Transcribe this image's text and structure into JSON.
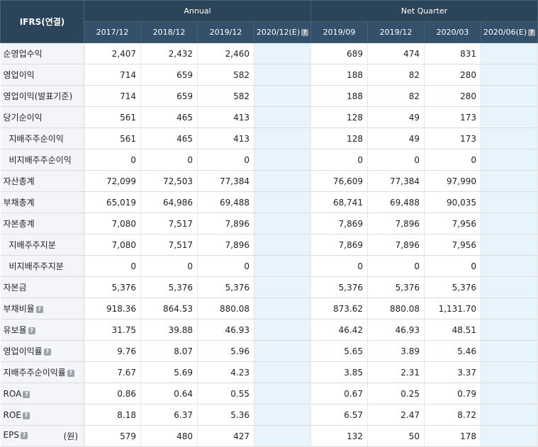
{
  "header": {
    "corner": "IFRS(연결)",
    "groups": [
      "Annual",
      "Net Quarter"
    ],
    "columns": [
      "2017/12",
      "2018/12",
      "2019/12",
      "2020/12(E)",
      "2019/09",
      "2019/12",
      "2020/03",
      "2020/06(E)"
    ]
  },
  "rows": [
    {
      "label": "순영업수익",
      "sub": false,
      "help": false,
      "values": [
        "2,407",
        "2,432",
        "2,460",
        "",
        "689",
        "474",
        "831",
        ""
      ]
    },
    {
      "label": "영업이익",
      "sub": false,
      "help": false,
      "values": [
        "714",
        "659",
        "582",
        "",
        "188",
        "82",
        "280",
        ""
      ]
    },
    {
      "label": "영업이익(발표기준)",
      "sub": false,
      "help": false,
      "values": [
        "714",
        "659",
        "582",
        "",
        "188",
        "82",
        "280",
        ""
      ]
    },
    {
      "label": "당기순이익",
      "sub": false,
      "help": false,
      "values": [
        "561",
        "465",
        "413",
        "",
        "128",
        "49",
        "173",
        ""
      ]
    },
    {
      "label": "지배주주순이익",
      "sub": true,
      "help": false,
      "values": [
        "561",
        "465",
        "413",
        "",
        "128",
        "49",
        "173",
        ""
      ]
    },
    {
      "label": "비지배주주순이익",
      "sub": true,
      "help": false,
      "values": [
        "0",
        "0",
        "0",
        "",
        "0",
        "0",
        "0",
        ""
      ]
    },
    {
      "label": "자산총계",
      "sub": false,
      "help": false,
      "values": [
        "72,099",
        "72,503",
        "77,384",
        "",
        "76,609",
        "77,384",
        "97,990",
        ""
      ]
    },
    {
      "label": "부채총계",
      "sub": false,
      "help": false,
      "values": [
        "65,019",
        "64,986",
        "69,488",
        "",
        "68,741",
        "69,488",
        "90,035",
        ""
      ]
    },
    {
      "label": "자본총계",
      "sub": false,
      "help": false,
      "values": [
        "7,080",
        "7,517",
        "7,896",
        "",
        "7,869",
        "7,896",
        "7,956",
        ""
      ]
    },
    {
      "label": "지배주주지분",
      "sub": true,
      "help": false,
      "values": [
        "7,080",
        "7,517",
        "7,896",
        "",
        "7,869",
        "7,896",
        "7,956",
        ""
      ]
    },
    {
      "label": "비지배주주지분",
      "sub": true,
      "help": false,
      "values": [
        "0",
        "0",
        "0",
        "",
        "0",
        "0",
        "0",
        ""
      ]
    },
    {
      "label": "자본금",
      "sub": false,
      "help": false,
      "values": [
        "5,376",
        "5,376",
        "5,376",
        "",
        "5,376",
        "5,376",
        "5,376",
        ""
      ]
    },
    {
      "label": "부채비율",
      "sub": false,
      "help": true,
      "values": [
        "918.36",
        "864.53",
        "880.08",
        "",
        "873.62",
        "880.08",
        "1,131.70",
        ""
      ]
    },
    {
      "label": "유보율",
      "sub": false,
      "help": true,
      "values": [
        "31.75",
        "39.88",
        "46.93",
        "",
        "46.42",
        "46.93",
        "48.51",
        ""
      ]
    },
    {
      "label": "영업이익률",
      "sub": false,
      "help": true,
      "values": [
        "9.76",
        "8.07",
        "5.96",
        "",
        "5.65",
        "3.89",
        "5.46",
        ""
      ]
    },
    {
      "label": "지배주주순이익률",
      "sub": false,
      "help": true,
      "values": [
        "7.67",
        "5.69",
        "4.23",
        "",
        "3.85",
        "2.31",
        "3.37",
        ""
      ]
    },
    {
      "label": "ROA",
      "sub": false,
      "help": true,
      "values": [
        "0.86",
        "0.64",
        "0.55",
        "",
        "0.67",
        "0.25",
        "0.79",
        ""
      ]
    },
    {
      "label": "ROE",
      "sub": false,
      "help": true,
      "values": [
        "8.18",
        "6.37",
        "5.36",
        "",
        "6.57",
        "2.47",
        "8.72",
        ""
      ]
    },
    {
      "label": "EPS",
      "sub": false,
      "help": true,
      "unit": "(원)",
      "values": [
        "579",
        "480",
        "427",
        "",
        "132",
        "50",
        "178",
        ""
      ]
    }
  ],
  "help_glyph": "?",
  "icons": {
    "help": "help-icon"
  },
  "colors": {
    "header_bg": "#2c4459",
    "estimate_bg": "#e8f4fb",
    "label_bg": "#f3f5f8"
  }
}
